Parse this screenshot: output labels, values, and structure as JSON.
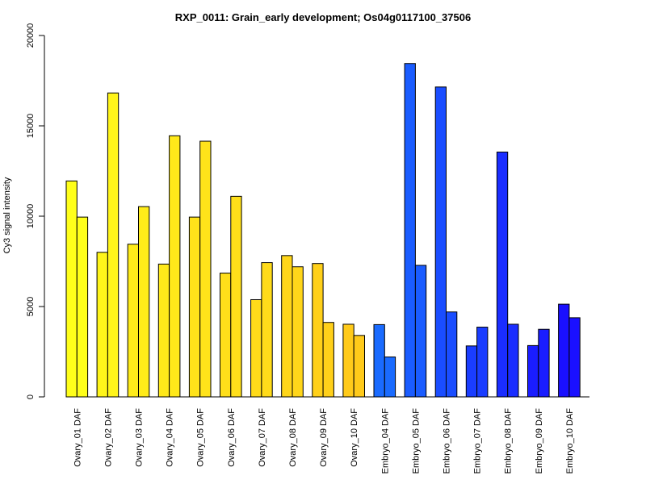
{
  "chart_data": {
    "type": "bar",
    "title": "RXP_0011: Grain_early development; Os04g0117100_37506",
    "ylabel": "Cy3 signal intensity",
    "xlabel": "",
    "ylim": [
      0,
      20000
    ],
    "yticks": [
      0,
      5000,
      10000,
      15000,
      20000
    ],
    "grid": false,
    "categories": [
      "Ovary_01 DAF",
      "Ovary_02 DAF",
      "Ovary_03 DAF",
      "Ovary_04 DAF",
      "Ovary_05 DAF",
      "Ovary_06 DAF",
      "Ovary_07 DAF",
      "Ovary_08 DAF",
      "Ovary_09 DAF",
      "Ovary_10 DAF",
      "Embryo_04 DAF",
      "Embryo_05 DAF",
      "Embryo_06 DAF",
      "Embryo_07 DAF",
      "Embryo_08 DAF",
      "Embryo_09 DAF",
      "Embryo_10 DAF"
    ],
    "colors": [
      "#ffff1a",
      "#fff51a",
      "#ffec1a",
      "#ffe91a",
      "#ffe31a",
      "#ffdf1a",
      "#ffdb1a",
      "#ffd61a",
      "#ffd01a",
      "#ffca1a",
      "#1a6bff",
      "#1a5cff",
      "#1a4dff",
      "#1a3dff",
      "#1a2dff",
      "#1a1dff",
      "#1a10ff"
    ],
    "series": [
      {
        "values": [
          11950,
          8000,
          8450,
          7350,
          9950,
          6850,
          5380,
          7820,
          7380,
          4020,
          4000,
          18450,
          17150,
          2820,
          13550,
          2840,
          5130
        ]
      },
      {
        "values": [
          9950,
          16820,
          10530,
          14450,
          14150,
          11100,
          7430,
          7200,
          4120,
          3400,
          2210,
          7280,
          4700,
          3860,
          4020,
          3740,
          4380
        ]
      }
    ]
  }
}
